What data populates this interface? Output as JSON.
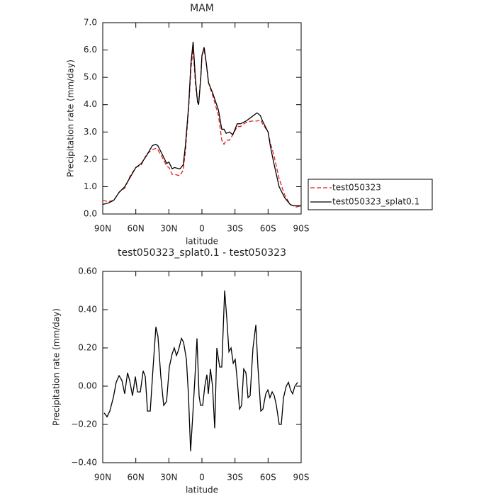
{
  "chart_data": [
    {
      "type": "line",
      "title": "MAM",
      "xlabel": "latitude",
      "ylabel": "Precipitation rate (mm/day)",
      "x": [
        90,
        85,
        80,
        75,
        70,
        65,
        60,
        55,
        50,
        45,
        42,
        40,
        35,
        32,
        30,
        27,
        25,
        20,
        17,
        15,
        12,
        10,
        8,
        6,
        4,
        3,
        1,
        0,
        -2,
        -4,
        -6,
        -10,
        -15,
        -18,
        -20,
        -22,
        -25,
        -28,
        -32,
        -35,
        -40,
        -45,
        -50,
        -53,
        -55,
        -60,
        -62,
        -65,
        -70,
        -75,
        -80,
        -83,
        -85,
        -90
      ],
      "series": [
        {
          "name": "test050323",
          "color": "#e0201f",
          "linestyle": "dashed",
          "values": [
            0.5,
            0.45,
            0.5,
            0.8,
            0.95,
            1.4,
            1.7,
            1.8,
            2.2,
            2.35,
            2.4,
            2.35,
            2.0,
            1.75,
            1.7,
            1.45,
            1.45,
            1.4,
            1.6,
            2.3,
            3.9,
            5.3,
            6.05,
            4.8,
            4.1,
            4.05,
            5.1,
            5.8,
            6.0,
            5.5,
            4.8,
            4.3,
            3.6,
            2.7,
            2.55,
            2.7,
            2.7,
            2.9,
            3.2,
            3.2,
            3.35,
            3.4,
            3.4,
            3.45,
            3.3,
            3.0,
            2.6,
            2.2,
            1.3,
            0.7,
            0.35,
            0.3,
            0.25,
            0.3
          ]
        },
        {
          "name": "test050323_splat0.1",
          "color": "#000000",
          "linestyle": "solid",
          "values": [
            0.35,
            0.4,
            0.5,
            0.8,
            1.0,
            1.35,
            1.7,
            1.85,
            2.15,
            2.5,
            2.55,
            2.5,
            2.1,
            1.85,
            1.9,
            1.65,
            1.7,
            1.65,
            1.8,
            2.5,
            4.0,
            5.5,
            6.3,
            5.0,
            4.1,
            4.0,
            5.0,
            5.8,
            6.1,
            5.5,
            4.8,
            4.4,
            3.8,
            3.1,
            3.1,
            2.95,
            3.0,
            2.9,
            3.3,
            3.3,
            3.4,
            3.55,
            3.7,
            3.6,
            3.4,
            3.0,
            2.5,
            1.9,
            1.0,
            0.6,
            0.35,
            0.3,
            0.3,
            0.3
          ]
        }
      ],
      "xlim": [
        90,
        -90
      ],
      "xticks": [
        {
          "value": 90,
          "label": "90N"
        },
        {
          "value": 60,
          "label": "60N"
        },
        {
          "value": 30,
          "label": "30N"
        },
        0,
        {
          "value": -30,
          "label": "30S"
        },
        {
          "value": -60,
          "label": "60S"
        },
        {
          "value": -90,
          "label": "90S"
        }
      ],
      "ylim": [
        0,
        7
      ],
      "yticks": [
        {
          "value": 0,
          "label": "0.0"
        },
        {
          "value": 1,
          "label": "1.0"
        },
        {
          "value": 2,
          "label": "2.0"
        },
        {
          "value": 3,
          "label": "3.0"
        },
        {
          "value": 4,
          "label": "4.0"
        },
        {
          "value": 5,
          "label": "5.0"
        },
        {
          "value": 6,
          "label": "6.0"
        },
        {
          "value": 7,
          "label": "7.0"
        }
      ],
      "legend": "right"
    },
    {
      "type": "line",
      "title": "test050323_splat0.1 - test050323",
      "xlabel": "latitude",
      "ylabel": "Precipitation rate (mm/day)",
      "series": [
        {
          "color": "#000000",
          "linestyle": "solid",
          "x": [
            88.7,
            86.1,
            83.6,
            80.4,
            77.8,
            75.2,
            72.6,
            70.1,
            67.5,
            65.6,
            63.0,
            60.4,
            58.5,
            55.9,
            53.3,
            51.4,
            49.4,
            46.9,
            44.3,
            41.8,
            39.9,
            37.3,
            34.7,
            32.1,
            29.6,
            27.0,
            25.1,
            23.1,
            21.2,
            18.6,
            16.7,
            14.1,
            12.2,
            10.3,
            8.3,
            6.4,
            4.5,
            2.6,
            1.3,
            -0.7,
            -2.6,
            -4.5,
            -5.8,
            -7.7,
            -9.6,
            -11.6,
            -13.5,
            -16.1,
            -18.0,
            -20.6,
            -22.6,
            -24.5,
            -26.4,
            -28.4,
            -30.2,
            -32.2,
            -34.1,
            -36.0,
            -37.9,
            -39.9,
            -41.8,
            -43.7,
            -46.3,
            -48.9,
            -50.8,
            -53.4,
            -55.3,
            -57.9,
            -59.8,
            -61.7,
            -63.7,
            -65.6,
            -67.5,
            -70.1,
            -72.0,
            -74.0,
            -76.5,
            -78.5,
            -80.4,
            -82.3,
            -84.3,
            -86.8
          ],
          "values": [
            -0.14,
            -0.16,
            -0.13,
            -0.06,
            0.02,
            0.055,
            0.03,
            -0.04,
            0.07,
            0.03,
            -0.05,
            0.05,
            -0.03,
            -0.03,
            0.08,
            0.05,
            -0.13,
            -0.13,
            0.1,
            0.31,
            0.26,
            0.05,
            -0.1,
            -0.08,
            0.1,
            0.17,
            0.2,
            0.16,
            0.19,
            0.25,
            0.23,
            0.14,
            -0.05,
            -0.34,
            -0.15,
            0.04,
            0.25,
            -0.05,
            -0.1,
            -0.1,
            0.0,
            0.06,
            -0.04,
            0.09,
            0.0,
            -0.22,
            0.2,
            0.1,
            0.1,
            0.5,
            0.35,
            0.18,
            0.2,
            0.12,
            0.14,
            0.02,
            -0.12,
            -0.1,
            0.09,
            0.07,
            -0.06,
            -0.05,
            0.2,
            0.32,
            0.1,
            -0.13,
            -0.12,
            -0.04,
            -0.02,
            -0.06,
            -0.03,
            -0.05,
            -0.1,
            -0.2,
            -0.2,
            -0.06,
            0.0,
            0.02,
            -0.02,
            -0.04,
            0.0,
            0.02
          ]
        }
      ],
      "xlim": [
        90,
        -90
      ],
      "xticks": [
        {
          "value": 90,
          "label": "90N"
        },
        {
          "value": 60,
          "label": "60N"
        },
        {
          "value": 30,
          "label": "30N"
        },
        0,
        {
          "value": -30,
          "label": "30S"
        },
        {
          "value": -60,
          "label": "60S"
        },
        {
          "value": -90,
          "label": "90S"
        }
      ],
      "ylim": [
        -0.4,
        0.6
      ],
      "yticks": [
        {
          "value": -0.4,
          "label": "−0.40"
        },
        {
          "value": -0.2,
          "label": "−0.20"
        },
        {
          "value": 0,
          "label": "0.00"
        },
        {
          "value": 0.2,
          "label": "0.20"
        },
        {
          "value": 0.4,
          "label": "0.40"
        },
        {
          "value": 0.6,
          "label": "0.60"
        }
      ]
    }
  ]
}
